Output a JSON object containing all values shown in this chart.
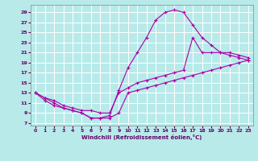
{
  "xlabel": "Windchill (Refroidissement éolien,°C)",
  "background_color": "#b8eaea",
  "line_color": "#aa00aa",
  "grid_color": "#d0f0f0",
  "xlim": [
    -0.5,
    23.5
  ],
  "ylim": [
    6.5,
    30.5
  ],
  "xticks": [
    0,
    1,
    2,
    3,
    4,
    5,
    6,
    7,
    8,
    9,
    10,
    11,
    12,
    13,
    14,
    15,
    16,
    17,
    18,
    19,
    20,
    21,
    22,
    23
  ],
  "yticks": [
    7,
    9,
    11,
    13,
    15,
    17,
    19,
    21,
    23,
    25,
    27,
    29
  ],
  "line1_x": [
    0,
    1,
    2,
    3,
    4,
    5,
    6,
    7,
    8,
    9,
    10,
    11,
    12,
    13,
    14,
    15,
    16,
    17,
    18,
    19,
    20,
    21,
    22,
    23
  ],
  "line1_y": [
    13,
    12,
    11,
    10,
    9.5,
    9,
    8,
    8,
    8.5,
    13.5,
    18,
    21,
    24,
    27.5,
    29,
    29.5,
    29,
    26.5,
    24,
    22.5,
    21,
    20.5,
    20,
    19.5
  ],
  "line2_x": [
    0,
    1,
    2,
    3,
    4,
    5,
    6,
    7,
    8,
    9,
    10,
    11,
    12,
    13,
    14,
    15,
    16,
    17,
    18,
    19,
    20,
    21,
    22,
    23
  ],
  "line2_y": [
    13,
    12,
    11.5,
    10.5,
    10,
    9.5,
    9.5,
    9,
    9,
    13,
    14,
    15,
    15.5,
    16,
    16.5,
    17,
    17.5,
    24,
    21,
    21,
    21,
    21,
    20.5,
    20
  ],
  "line3_x": [
    0,
    1,
    2,
    3,
    4,
    5,
    6,
    7,
    8,
    9,
    10,
    11,
    12,
    13,
    14,
    15,
    16,
    17,
    18,
    19,
    20,
    21,
    22,
    23
  ],
  "line3_y": [
    13,
    11.5,
    10.5,
    10,
    9.5,
    9,
    8,
    8,
    8,
    9,
    13,
    13.5,
    14,
    14.5,
    15,
    15.5,
    16,
    16.5,
    17,
    17.5,
    18,
    18.5,
    19,
    19.5
  ]
}
